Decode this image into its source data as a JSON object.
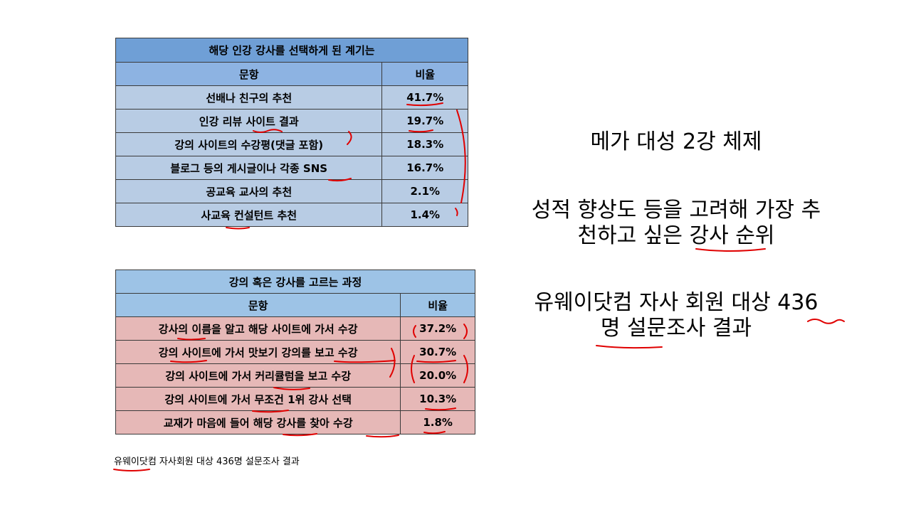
{
  "table1": {
    "title": "해당 인강 강사를 선택하게 된 계기는",
    "header": {
      "item": "문항",
      "rate": "비율"
    },
    "rows": [
      {
        "item": "선배나 친구의 추천",
        "rate": "41.7%"
      },
      {
        "item": "인강 리뷰 사이트 결과",
        "rate": "19.7%"
      },
      {
        "item": "강의 사이트의 수강평(댓글 포함)",
        "rate": "18.3%"
      },
      {
        "item": "블로그 등의 게시글이나 각종 SNS",
        "rate": "16.7%"
      },
      {
        "item": "공교육 교사의 추천",
        "rate": "2.1%"
      },
      {
        "item": "사교육 컨설턴트 추천",
        "rate": "1.4%"
      }
    ]
  },
  "table2": {
    "title": "강의 혹은 강사를 고르는 과정",
    "header": {
      "item": "문항",
      "rate": "비율"
    },
    "rows": [
      {
        "item": "강사의 이름을 알고 해당 사이트에 가서 수강",
        "rate": "37.2%"
      },
      {
        "item": "강의 사이트에 가서 맛보기 강의를 보고 수강",
        "rate": "30.7%"
      },
      {
        "item": "강의 사이트에 가서 커리큘럼을 보고 수강",
        "rate": "20.0%"
      },
      {
        "item": "강의 사이트에 가서 무조건 1위 강사 선택",
        "rate": "10.3%"
      },
      {
        "item": "교재가 마음에 들어 해당 강사를 찾아 수강",
        "rate": "1.8%"
      }
    ]
  },
  "source_note": "유웨이닷컴 자사회원 대상 436명 설문조사 결과",
  "side_notes": {
    "line1": "메가 대성 2강 체제",
    "line2a": "성적 향상도 등을 고려해 가장 추",
    "line2b": "천하고 싶은 강사 순위",
    "line3a": "유웨이닷컴 자사 회원 대상 436",
    "line3b": "명 설문조사 결과"
  },
  "annotation_color": "#e00000"
}
